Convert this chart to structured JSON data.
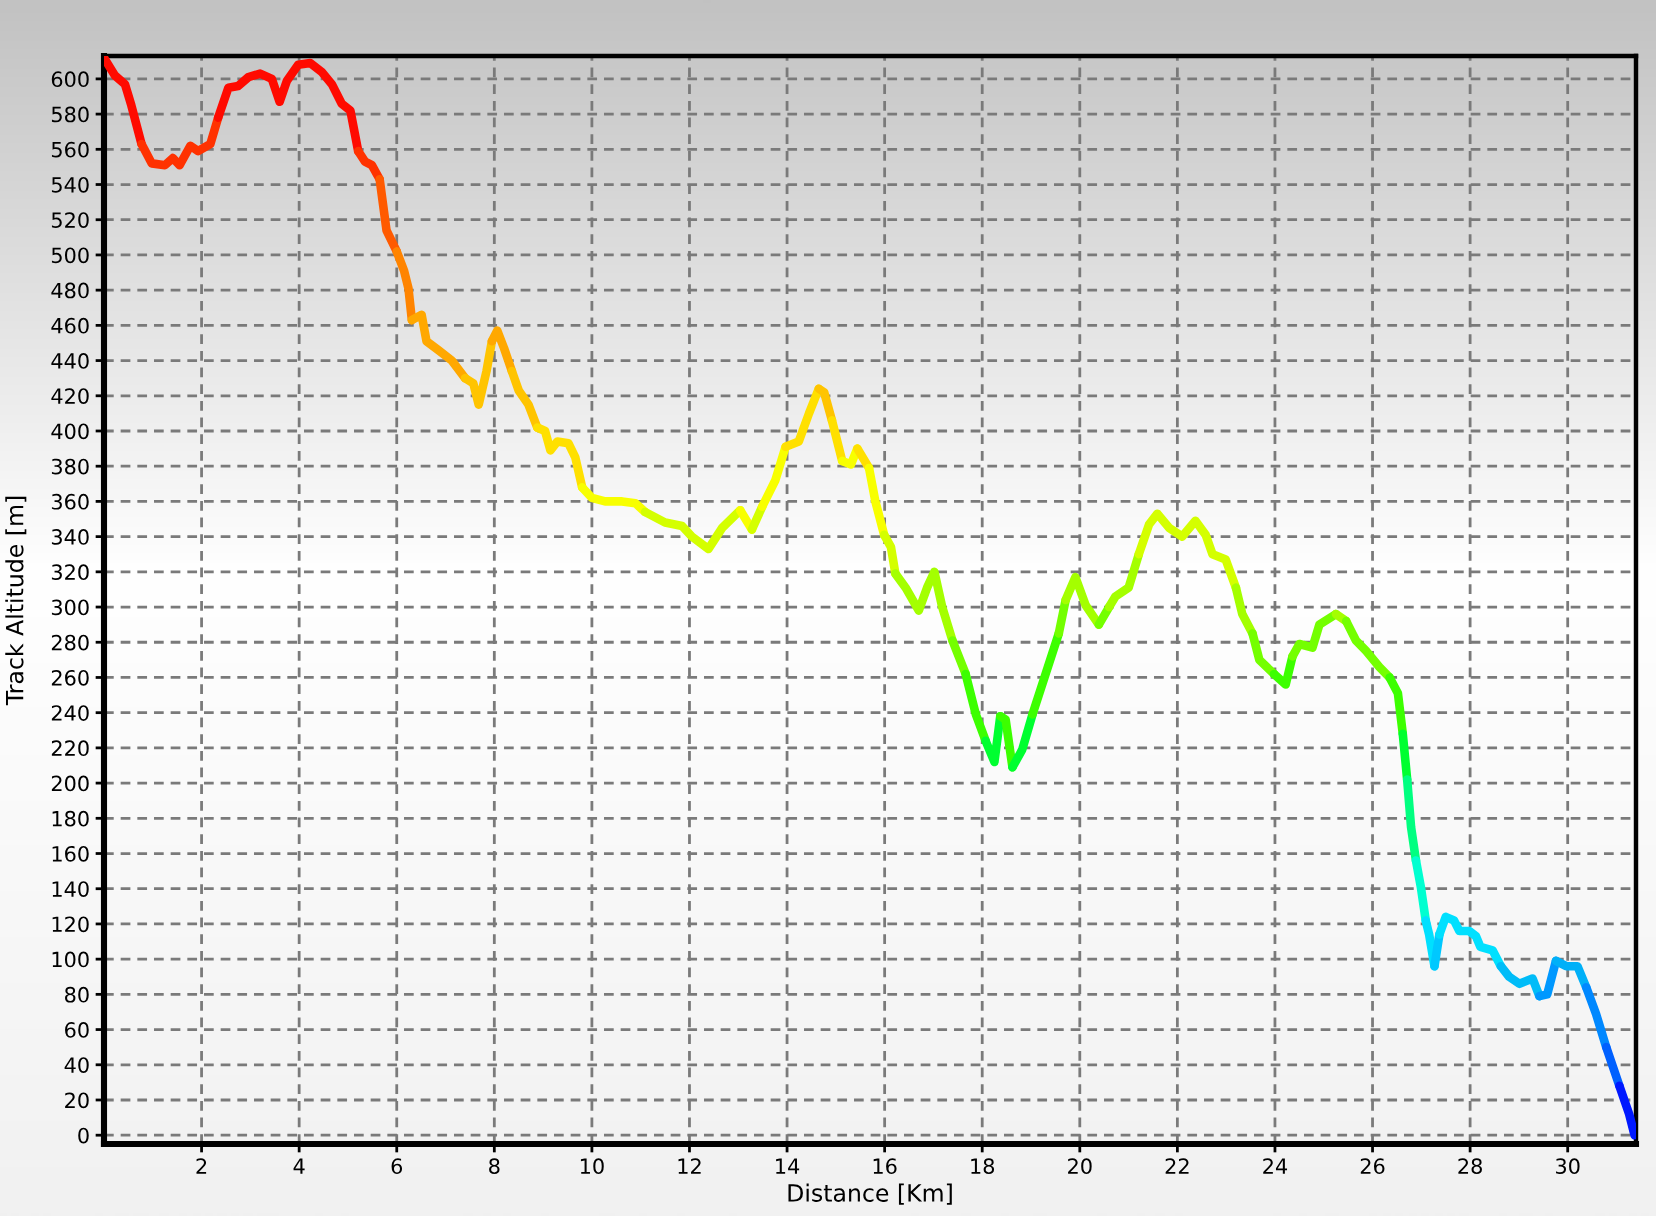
{
  "chart_data": {
    "type": "line",
    "xlabel": "Distance [Km]",
    "ylabel": "Track Altitude [m]",
    "series": [
      {
        "color": "#ff0a00",
        "x": [
          0,
          0.22,
          0.43,
          0.56,
          0.77
        ],
        "values": [
          612,
          602,
          597,
          585,
          563
        ]
      },
      {
        "color": "#ff3200",
        "x": [
          0.77,
          0.98,
          1.25,
          1.41,
          1.55,
          1.77,
          1.93,
          2.18,
          2.34
        ],
        "values": [
          563,
          552,
          551,
          555,
          551,
          562,
          559,
          563,
          578
        ]
      },
      {
        "color": "#ff0a00",
        "x": [
          2.34,
          2.55,
          2.75,
          2.96,
          3.2,
          3.44,
          3.6,
          3.75,
          3.98,
          4.23,
          4.46,
          4.67,
          4.87,
          5.05,
          5.21
        ],
        "values": [
          578,
          595,
          596,
          601,
          603,
          600,
          587,
          599,
          608,
          609,
          604,
          597,
          586,
          582,
          559
        ]
      },
      {
        "color": "#ff3200",
        "x": [
          5.21,
          5.35,
          5.49,
          5.65
        ],
        "values": [
          559,
          553,
          551,
          543
        ]
      },
      {
        "color": "#ff5a00",
        "x": [
          5.65,
          5.79,
          6.0
        ],
        "values": [
          543,
          514,
          502
        ]
      },
      {
        "color": "#ff8400",
        "x": [
          6.0,
          6.15,
          6.24,
          6.31
        ],
        "values": [
          502,
          491,
          481,
          463
        ]
      },
      {
        "color": "#ffa800",
        "x": [
          6.31,
          6.51,
          6.61,
          6.85,
          7.13,
          7.4
        ],
        "values": [
          463,
          466,
          451,
          446,
          440,
          430
        ]
      },
      {
        "color": "#ffc400",
        "x": [
          7.4,
          7.57,
          7.68,
          7.84,
          7.95
        ],
        "values": [
          430,
          427,
          415,
          434,
          451
        ]
      },
      {
        "color": "#ffa800",
        "x": [
          7.95,
          8.06,
          8.2,
          8.36
        ],
        "values": [
          451,
          457,
          447,
          434
        ]
      },
      {
        "color": "#ffc400",
        "x": [
          8.36,
          8.5,
          8.7,
          8.88
        ],
        "values": [
          434,
          423,
          415,
          402
        ]
      },
      {
        "color": "#ffe000",
        "x": [
          8.88,
          9.04,
          9.15,
          9.29,
          9.52,
          9.66,
          9.8
        ],
        "values": [
          402,
          400,
          389,
          394,
          393,
          385,
          368
        ]
      },
      {
        "color": "#f8ff00",
        "x": [
          9.8,
          10.0,
          10.27,
          10.62,
          10.89,
          11.09
        ],
        "values": [
          368,
          362,
          360,
          360,
          359,
          354
        ]
      },
      {
        "color": "#d4ff00",
        "x": [
          11.09,
          11.5,
          11.85,
          12.05,
          12.39,
          12.67,
          13.04
        ],
        "values": [
          354,
          348,
          346,
          340,
          333,
          345,
          355
        ]
      },
      {
        "color": "#f8ff00",
        "x": [
          13.04,
          13.28
        ],
        "values": [
          355,
          344
        ]
      },
      {
        "color": "#d4ff00",
        "x": [
          13.28,
          13.49
        ],
        "values": [
          344,
          357
        ]
      },
      {
        "color": "#f8ff00",
        "x": [
          13.49,
          13.76,
          13.97
        ],
        "values": [
          357,
          372,
          391
        ]
      },
      {
        "color": "#ffe000",
        "x": [
          13.97,
          14.24,
          14.45,
          14.65
        ],
        "values": [
          391,
          394,
          410,
          424
        ]
      },
      {
        "color": "#ffc400",
        "x": [
          14.65,
          14.76,
          14.92
        ],
        "values": [
          424,
          422,
          406
        ]
      },
      {
        "color": "#ffe000",
        "x": [
          14.92,
          15.13
        ],
        "values": [
          406,
          383
        ]
      },
      {
        "color": "#f8ff00",
        "x": [
          15.13,
          15.31,
          15.44
        ],
        "values": [
          383,
          381,
          390
        ]
      },
      {
        "color": "#ffe000",
        "x": [
          15.44,
          15.68
        ],
        "values": [
          390,
          379
        ]
      },
      {
        "color": "#f8ff00",
        "x": [
          15.68,
          15.81,
          15.99
        ],
        "values": [
          379,
          360,
          341
        ]
      },
      {
        "color": "#d4ff00",
        "x": [
          15.99,
          16.13,
          16.22
        ],
        "values": [
          341,
          334,
          319
        ]
      },
      {
        "color": "#a4ff00",
        "x": [
          16.22,
          16.43,
          16.7,
          16.87,
          17.02,
          17.18,
          17.39
        ],
        "values": [
          319,
          311,
          298,
          311,
          320,
          300,
          281
        ]
      },
      {
        "color": "#74ff00",
        "x": [
          17.39,
          17.66
        ],
        "values": [
          281,
          262
        ]
      },
      {
        "color": "#3cff00",
        "x": [
          17.66,
          17.87,
          18.07
        ],
        "values": [
          262,
          239,
          224
        ]
      },
      {
        "color": "#00ff30",
        "x": [
          18.07,
          18.25,
          18.37
        ],
        "values": [
          224,
          212,
          238
        ]
      },
      {
        "color": "#3cff00",
        "x": [
          18.37,
          18.48,
          18.62
        ],
        "values": [
          238,
          236,
          209
        ]
      },
      {
        "color": "#00ff30",
        "x": [
          18.62,
          18.82,
          19.03
        ],
        "values": [
          209,
          219,
          239
        ]
      },
      {
        "color": "#3cff00",
        "x": [
          19.03,
          19.3,
          19.57
        ],
        "values": [
          239,
          262,
          285
        ]
      },
      {
        "color": "#74ff00",
        "x": [
          19.57,
          19.71
        ],
        "values": [
          285,
          304
        ]
      },
      {
        "color": "#a4ff00",
        "x": [
          19.71,
          19.91,
          20.12,
          20.39
        ],
        "values": [
          304,
          317,
          301,
          290
        ]
      },
      {
        "color": "#74ff00",
        "x": [
          20.39,
          20.6
        ],
        "values": [
          290,
          300
        ]
      },
      {
        "color": "#a4ff00",
        "x": [
          20.6,
          20.73,
          21.0,
          21.21
        ],
        "values": [
          300,
          306,
          311,
          330
        ]
      },
      {
        "color": "#d4ff00",
        "x": [
          21.21,
          21.42,
          21.59,
          21.83,
          22.1,
          22.37,
          22.58,
          22.72,
          22.99,
          23.2
        ],
        "values": [
          330,
          347,
          353,
          345,
          340,
          349,
          341,
          330,
          327,
          311
        ]
      },
      {
        "color": "#a4ff00",
        "x": [
          23.2,
          23.33,
          23.54
        ],
        "values": [
          311,
          296,
          285
        ]
      },
      {
        "color": "#74ff00",
        "x": [
          23.54,
          23.68,
          23.98
        ],
        "values": [
          285,
          270,
          262
        ]
      },
      {
        "color": "#3cff00",
        "x": [
          23.98,
          24.22,
          24.36
        ],
        "values": [
          262,
          256,
          272
        ]
      },
      {
        "color": "#74ff00",
        "x": [
          24.36,
          24.5,
          24.77,
          24.91,
          25.25
        ],
        "values": [
          272,
          279,
          277,
          290,
          296
        ]
      },
      {
        "color": "#a4ff00",
        "x": [
          25.25,
          25.46
        ],
        "values": [
          296,
          292
        ]
      },
      {
        "color": "#74ff00",
        "x": [
          25.46,
          25.66,
          25.87,
          26.14,
          26.35
        ],
        "values": [
          292,
          281,
          275,
          266,
          260
        ]
      },
      {
        "color": "#3cff00",
        "x": [
          26.35,
          26.52,
          26.62
        ],
        "values": [
          260,
          251,
          228
        ]
      },
      {
        "color": "#00ff30",
        "x": [
          26.62,
          26.71
        ],
        "values": [
          228,
          202
        ]
      },
      {
        "color": "#00ff80",
        "x": [
          26.71,
          26.79,
          26.89
        ],
        "values": [
          202,
          175,
          156
        ]
      },
      {
        "color": "#00ffd0",
        "x": [
          26.89,
          26.99,
          27.09
        ],
        "values": [
          156,
          141,
          122
        ]
      },
      {
        "color": "#00e0ff",
        "x": [
          27.09,
          27.16,
          27.27
        ],
        "values": [
          122,
          114,
          96
        ]
      },
      {
        "color": "#00c8ff",
        "x": [
          27.27,
          27.37
        ],
        "values": [
          96,
          114
        ]
      },
      {
        "color": "#00e0ff",
        "x": [
          27.37,
          27.5,
          27.67,
          27.78,
          27.98,
          28.12,
          28.21,
          28.46,
          28.63
        ],
        "values": [
          114,
          124,
          122,
          116,
          116,
          113,
          107,
          105,
          96
        ]
      },
      {
        "color": "#00bcf8",
        "x": [
          28.63,
          28.8,
          29.01,
          29.28,
          29.42
        ],
        "values": [
          96,
          90,
          86,
          89,
          79
        ]
      },
      {
        "color": "#0098ff",
        "x": [
          29.42,
          29.58,
          29.76
        ],
        "values": [
          79,
          80,
          99
        ]
      },
      {
        "color": "#00b0f8",
        "x": [
          29.76,
          29.97,
          30.2,
          30.38
        ],
        "values": [
          99,
          96,
          96,
          84
        ]
      },
      {
        "color": "#0088ff",
        "x": [
          30.38,
          30.58,
          30.79
        ],
        "values": [
          84,
          69,
          50
        ]
      },
      {
        "color": "#0060ff",
        "x": [
          30.79,
          31.06
        ],
        "values": [
          50,
          28
        ]
      },
      {
        "color": "#0018ff",
        "x": [
          31.06,
          31.26,
          31.37
        ],
        "values": [
          28,
          12,
          0
        ]
      }
    ],
    "xlim": [
      0,
      31.4
    ],
    "ylim": [
      -5,
      613
    ],
    "xticks": [
      2,
      4,
      6,
      8,
      10,
      12,
      14,
      16,
      18,
      20,
      22,
      24,
      26,
      28,
      30
    ],
    "yticks": [
      0,
      20,
      40,
      60,
      80,
      100,
      120,
      140,
      160,
      180,
      200,
      220,
      240,
      260,
      280,
      300,
      320,
      340,
      360,
      380,
      400,
      420,
      440,
      460,
      480,
      500,
      520,
      540,
      560,
      580,
      600
    ],
    "grid": true,
    "line_style": "solid"
  }
}
